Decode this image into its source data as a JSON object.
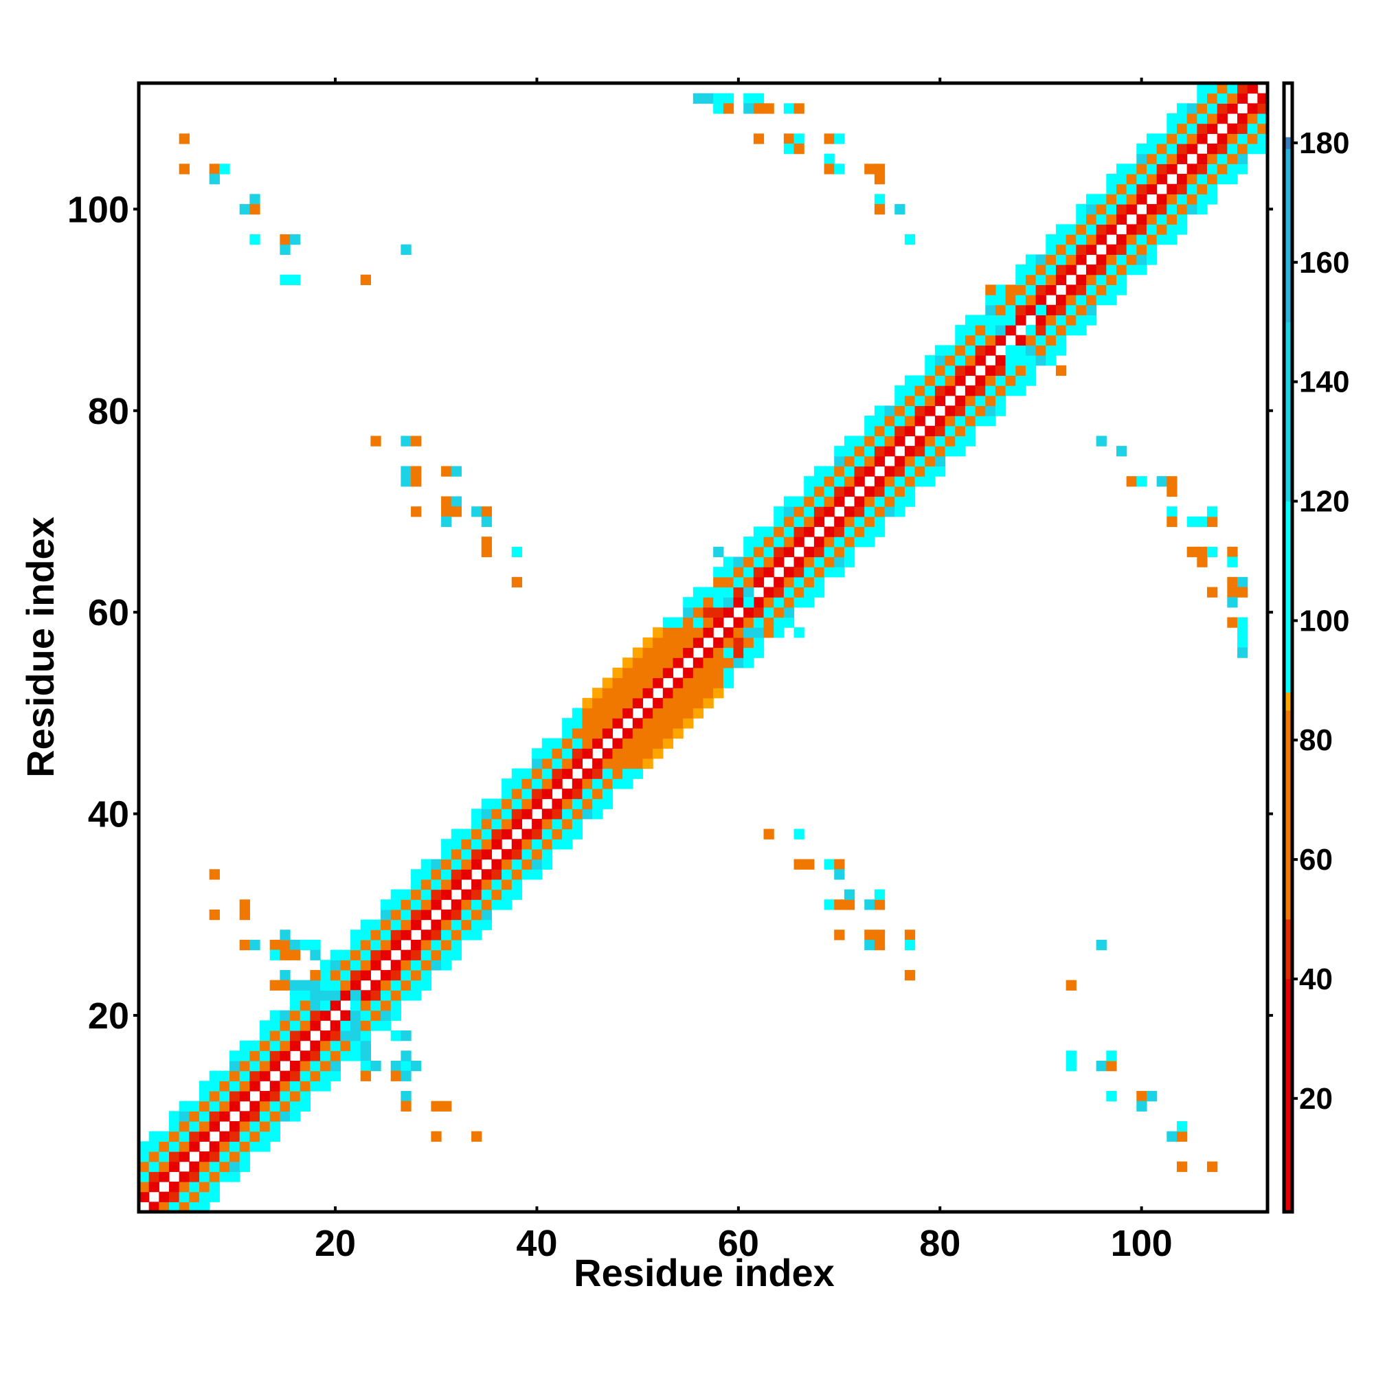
{
  "chart_data": {
    "type": "heatmap",
    "title": "",
    "xlabel": "Residue index",
    "ylabel": "Residue index",
    "xlim": [
      1,
      112
    ],
    "ylim": [
      1,
      112
    ],
    "xticks": [
      20,
      40,
      60,
      80,
      100
    ],
    "yticks": [
      20,
      40,
      60,
      80,
      100
    ],
    "colorbar": {
      "range": [
        1,
        190
      ],
      "ticks": [
        20,
        40,
        60,
        80,
        100,
        120,
        140,
        160,
        180
      ],
      "stops": [
        {
          "value": 1,
          "color": "#e60000"
        },
        {
          "value": 40,
          "color": "#e62a00"
        },
        {
          "value": 50,
          "color": "#f07800"
        },
        {
          "value": 85,
          "color": "#ffa500"
        },
        {
          "value": 88,
          "color": "#00ffff"
        },
        {
          "value": 120,
          "color": "#1ed2e6"
        },
        {
          "value": 150,
          "color": "#2ab4dc"
        },
        {
          "value": 179,
          "color": "#3a7ec0"
        },
        {
          "value": 181,
          "color": "#ffffff"
        },
        {
          "value": 190,
          "color": "#ffffff"
        }
      ]
    },
    "diagonal_band": {
      "description_values": "value at |i-j|=d",
      "offsets": [
        0,
        1,
        2,
        3,
        4,
        5,
        6
      ],
      "helix_pattern_values": [
        0,
        12,
        40,
        100,
        70,
        90,
        95
      ],
      "strand_pattern_values": [
        0,
        12,
        70,
        75,
        80,
        82,
        85
      ]
    },
    "segments": {
      "strand_regions": [
        [
          45,
          58
        ]
      ],
      "helix_regions": [
        [
          1,
          44
        ],
        [
          59,
          112
        ]
      ]
    },
    "contacts": [
      [
        5,
        107,
        70
      ],
      [
        5,
        104,
        70
      ],
      [
        8,
        104,
        70
      ],
      [
        8,
        103,
        140
      ],
      [
        9,
        104,
        100
      ],
      [
        11,
        100,
        140
      ],
      [
        12,
        101,
        120
      ],
      [
        12,
        100,
        70
      ],
      [
        12,
        97,
        100
      ],
      [
        15,
        96,
        140
      ],
      [
        15,
        97,
        70
      ],
      [
        16,
        97,
        120
      ],
      [
        15,
        93,
        100
      ],
      [
        16,
        93,
        100
      ],
      [
        23,
        93,
        70
      ],
      [
        27,
        96,
        120
      ],
      [
        24,
        77,
        70
      ],
      [
        27,
        77,
        120
      ],
      [
        28,
        77,
        70
      ],
      [
        27,
        74,
        120
      ],
      [
        28,
        74,
        70
      ],
      [
        27,
        73,
        140
      ],
      [
        28,
        73,
        70
      ],
      [
        28,
        70,
        70
      ],
      [
        31,
        74,
        70
      ],
      [
        32,
        74,
        120
      ],
      [
        31,
        71,
        70
      ],
      [
        32,
        71,
        140
      ],
      [
        31,
        70,
        70
      ],
      [
        32,
        70,
        70
      ],
      [
        31,
        69,
        140
      ],
      [
        34,
        70,
        120
      ],
      [
        35,
        70,
        70
      ],
      [
        35,
        69,
        120
      ],
      [
        35,
        67,
        70
      ],
      [
        35,
        66,
        70
      ],
      [
        38,
        66,
        100
      ],
      [
        38,
        63,
        70
      ],
      [
        8,
        34,
        70
      ],
      [
        8,
        30,
        70
      ],
      [
        11,
        31,
        70
      ],
      [
        11,
        30,
        70
      ],
      [
        11,
        27,
        70
      ],
      [
        12,
        27,
        140
      ],
      [
        14,
        27,
        70
      ],
      [
        15,
        27,
        70
      ],
      [
        16,
        27,
        140
      ],
      [
        17,
        27,
        100
      ],
      [
        18,
        27,
        100
      ],
      [
        15,
        28,
        140
      ],
      [
        14,
        26,
        100
      ],
      [
        15,
        26,
        70
      ],
      [
        16,
        26,
        70
      ],
      [
        18,
        26,
        140
      ],
      [
        15,
        24,
        140
      ],
      [
        18,
        24,
        70
      ],
      [
        14,
        23,
        70
      ],
      [
        15,
        23,
        70
      ],
      [
        16,
        23,
        140
      ],
      [
        17,
        23,
        140
      ],
      [
        18,
        23,
        120
      ],
      [
        19,
        23,
        100
      ],
      [
        18,
        22,
        140
      ],
      [
        19,
        22,
        140
      ],
      [
        20,
        22,
        120
      ],
      [
        18,
        21,
        140
      ],
      [
        19,
        21,
        100
      ],
      [
        22,
        22,
        140
      ],
      [
        22,
        21,
        100
      ],
      [
        22,
        20,
        140
      ],
      [
        21,
        19,
        100
      ],
      [
        22,
        19,
        120
      ],
      [
        21,
        18,
        120
      ],
      [
        22,
        18,
        120
      ],
      [
        23,
        17,
        140
      ],
      [
        26,
        18,
        100
      ],
      [
        27,
        18,
        120
      ],
      [
        23,
        16,
        120
      ],
      [
        23,
        15,
        100
      ],
      [
        24,
        15,
        120
      ],
      [
        26,
        15,
        140
      ],
      [
        27,
        15,
        100
      ],
      [
        28,
        15,
        120
      ],
      [
        23,
        14,
        70
      ],
      [
        26,
        14,
        70
      ],
      [
        27,
        16,
        140
      ],
      [
        27,
        14,
        120
      ],
      [
        27,
        12,
        140
      ],
      [
        27,
        11,
        70
      ],
      [
        30,
        11,
        70
      ],
      [
        31,
        11,
        70
      ],
      [
        30,
        8,
        70
      ],
      [
        34,
        8,
        70
      ],
      [
        63,
        38,
        70
      ],
      [
        66,
        38,
        100
      ],
      [
        66,
        35,
        70
      ],
      [
        67,
        35,
        70
      ],
      [
        69,
        35,
        100
      ],
      [
        70,
        35,
        70
      ],
      [
        70,
        34,
        120
      ],
      [
        69,
        31,
        100
      ],
      [
        70,
        31,
        70
      ],
      [
        71,
        31,
        70
      ],
      [
        71,
        32,
        140
      ],
      [
        73,
        31,
        120
      ],
      [
        74,
        31,
        70
      ],
      [
        74,
        32,
        100
      ],
      [
        70,
        28,
        70
      ],
      [
        73,
        28,
        70
      ],
      [
        74,
        28,
        70
      ],
      [
        73,
        27,
        140
      ],
      [
        74,
        27,
        70
      ],
      [
        77,
        28,
        70
      ],
      [
        77,
        27,
        100
      ],
      [
        77,
        24,
        70
      ],
      [
        96,
        27,
        120
      ],
      [
        93,
        23,
        70
      ],
      [
        93,
        16,
        100
      ],
      [
        93,
        15,
        100
      ],
      [
        96,
        15,
        120
      ],
      [
        97,
        15,
        70
      ],
      [
        97,
        16,
        100
      ],
      [
        97,
        12,
        100
      ],
      [
        100,
        12,
        70
      ],
      [
        101,
        12,
        120
      ],
      [
        100,
        11,
        140
      ],
      [
        103,
        8,
        140
      ],
      [
        104,
        8,
        70
      ],
      [
        104,
        9,
        100
      ],
      [
        104,
        5,
        70
      ],
      [
        107,
        5,
        70
      ],
      [
        56,
        111,
        140
      ],
      [
        57,
        111,
        140
      ],
      [
        58,
        111,
        100
      ],
      [
        59,
        111,
        100
      ],
      [
        58,
        110,
        100
      ],
      [
        59,
        110,
        70
      ],
      [
        61,
        111,
        100
      ],
      [
        62,
        111,
        100
      ],
      [
        61,
        110,
        140
      ],
      [
        62,
        110,
        70
      ],
      [
        63,
        110,
        70
      ],
      [
        65,
        110,
        100
      ],
      [
        66,
        110,
        70
      ],
      [
        62,
        107,
        70
      ],
      [
        65,
        107,
        70
      ],
      [
        66,
        107,
        100
      ],
      [
        65,
        106,
        100
      ],
      [
        66,
        106,
        70
      ],
      [
        69,
        107,
        70
      ],
      [
        70,
        107,
        100
      ],
      [
        69,
        105,
        100
      ],
      [
        69,
        104,
        70
      ],
      [
        70,
        104,
        100
      ],
      [
        73,
        104,
        70
      ],
      [
        74,
        104,
        70
      ],
      [
        74,
        103,
        70
      ],
      [
        74,
        101,
        100
      ],
      [
        74,
        100,
        70
      ],
      [
        76,
        100,
        120
      ],
      [
        77,
        97,
        100
      ],
      [
        96,
        77,
        120
      ],
      [
        98,
        76,
        120
      ],
      [
        99,
        73,
        70
      ],
      [
        100,
        73,
        100
      ],
      [
        102,
        73,
        120
      ],
      [
        103,
        73,
        70
      ],
      [
        103,
        72,
        70
      ],
      [
        103,
        70,
        100
      ],
      [
        103,
        69,
        70
      ],
      [
        105,
        69,
        100
      ],
      [
        106,
        69,
        100
      ],
      [
        107,
        69,
        70
      ],
      [
        107,
        70,
        100
      ],
      [
        105,
        66,
        70
      ],
      [
        106,
        66,
        70
      ],
      [
        107,
        66,
        100
      ],
      [
        109,
        66,
        70
      ],
      [
        109,
        65,
        100
      ],
      [
        106,
        65,
        70
      ],
      [
        109,
        63,
        70
      ],
      [
        110,
        63,
        120
      ],
      [
        109,
        62,
        70
      ],
      [
        110,
        62,
        70
      ],
      [
        107,
        62,
        70
      ],
      [
        109,
        61,
        140
      ],
      [
        109,
        59,
        70
      ],
      [
        110,
        59,
        100
      ],
      [
        110,
        58,
        100
      ],
      [
        110,
        57,
        100
      ],
      [
        110,
        56,
        140
      ],
      [
        58,
        66,
        120
      ],
      [
        61,
        66,
        100
      ],
      [
        58,
        63,
        70
      ],
      [
        59,
        63,
        70
      ],
      [
        58,
        62,
        100
      ],
      [
        59,
        62,
        100
      ],
      [
        58,
        61,
        100
      ],
      [
        59,
        61,
        140
      ],
      [
        61,
        62,
        120
      ],
      [
        61,
        61,
        100
      ],
      [
        60,
        58,
        70
      ],
      [
        61,
        58,
        120
      ],
      [
        62,
        58,
        140
      ],
      [
        63,
        58,
        70
      ],
      [
        62,
        59,
        100
      ],
      [
        66,
        58,
        100
      ],
      [
        57,
        60,
        40
      ],
      [
        58,
        60,
        40
      ],
      [
        60,
        57,
        40
      ],
      [
        60,
        56,
        40
      ],
      [
        85,
        92,
        70
      ],
      [
        87,
        92,
        70
      ],
      [
        85,
        89,
        100
      ],
      [
        86,
        89,
        100
      ],
      [
        87,
        89,
        100
      ],
      [
        86,
        88,
        120
      ],
      [
        87,
        86,
        100
      ],
      [
        88,
        86,
        100
      ],
      [
        89,
        86,
        120
      ],
      [
        90,
        86,
        70
      ],
      [
        87,
        85,
        100
      ],
      [
        88,
        85,
        100
      ],
      [
        89,
        85,
        100
      ],
      [
        92,
        84,
        70
      ],
      [
        89,
        88,
        100
      ],
      [
        90,
        90,
        100
      ]
    ]
  }
}
